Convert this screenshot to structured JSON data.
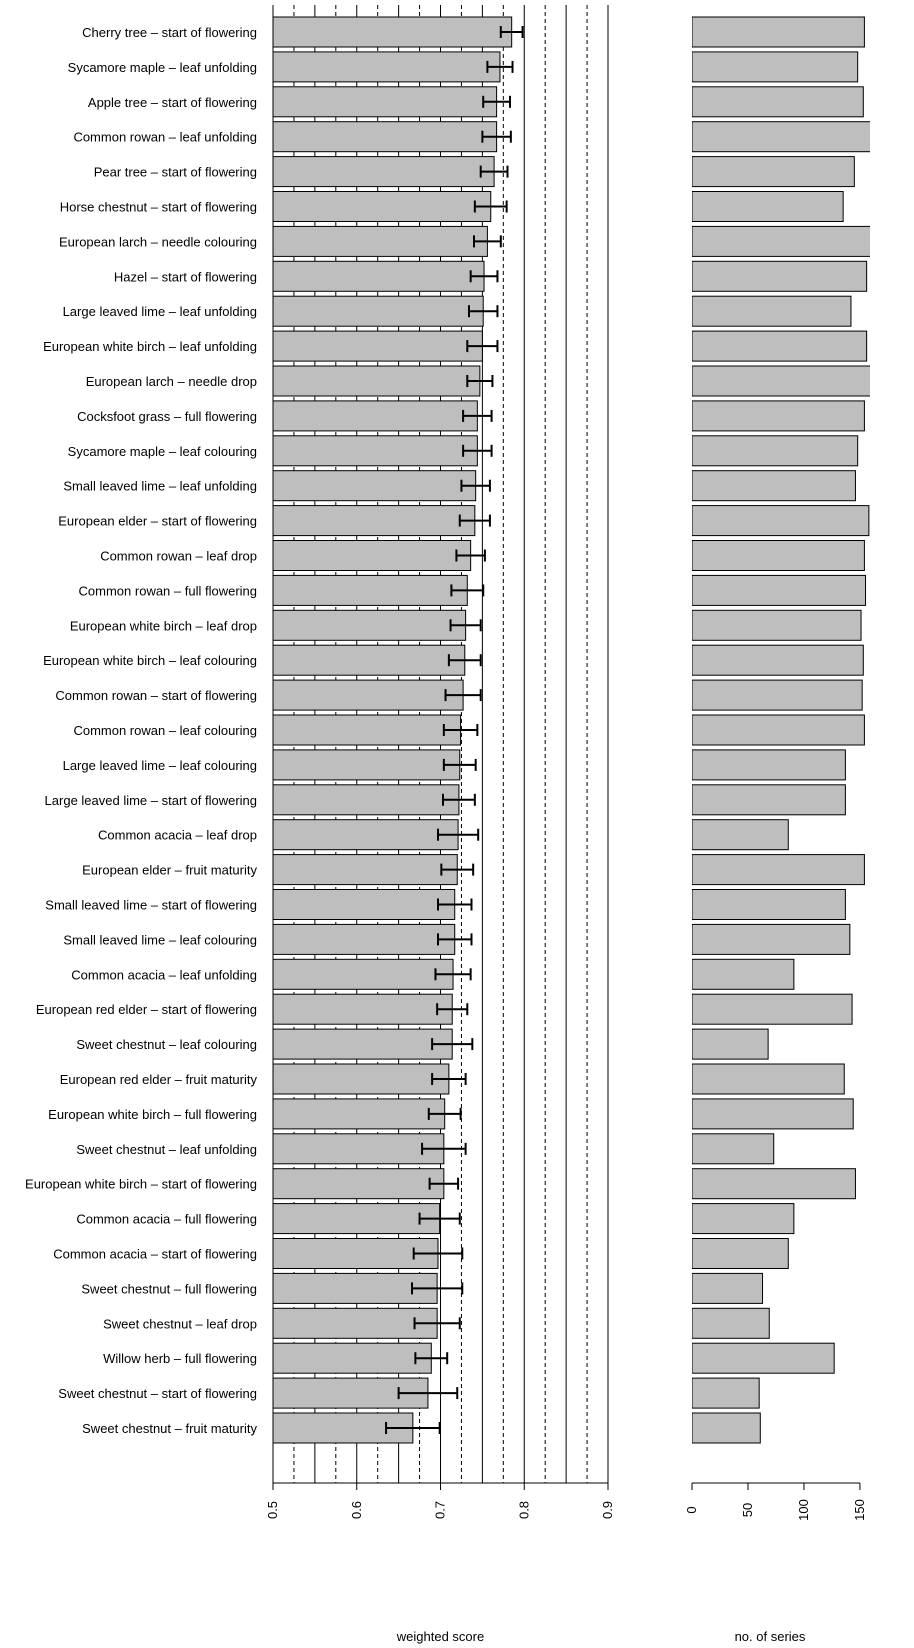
{
  "chart_data": [
    {
      "type": "bar-error",
      "orientation": "horizontal",
      "xlabel": "weighted score",
      "color": "#bebebe",
      "categories": [
        "Cherry tree – start of flowering",
        "Sycamore maple – leaf unfolding",
        "Apple tree – start of flowering",
        "Common rowan – leaf unfolding",
        "Pear tree – start of flowering",
        "Horse chestnut – start of flowering",
        "European larch – needle colouring",
        "Hazel – start of flowering",
        "Large leaved lime – leaf unfolding",
        "European white birch – leaf unfolding",
        "European larch – needle drop",
        "Cocksfoot grass – full flowering",
        "Sycamore maple – leaf colouring",
        "Small leaved lime – leaf unfolding",
        "European elder – start of flowering",
        "Common rowan – leaf drop",
        "Common rowan – full flowering",
        "European white birch – leaf drop",
        "European white birch – leaf colouring",
        "Common rowan – start of flowering",
        "Common rowan – leaf colouring",
        "Large leaved lime – leaf colouring",
        "Large leaved lime – start of flowering",
        "Common acacia – leaf drop",
        "European elder – fruit maturity",
        "Small leaved lime – start of flowering",
        "Small leaved lime – leaf colouring",
        "Common acacia – leaf unfolding",
        "European red elder – start of flowering",
        "Sweet chestnut – leaf colouring",
        "European red elder – fruit maturity",
        "European white birch – full flowering",
        "Sweet chestnut – leaf unfolding",
        "European white birch – start of flowering",
        "Common acacia – full flowering",
        "Common acacia – start of flowering",
        "Sweet chestnut – full flowering",
        "Sweet chestnut – leaf drop",
        "Willow herb – full flowering",
        "Sweet chestnut – start of flowering",
        "Sweet chestnut – fruit maturity"
      ],
      "values": [
        0.785,
        0.771,
        0.767,
        0.767,
        0.764,
        0.76,
        0.756,
        0.752,
        0.751,
        0.75,
        0.747,
        0.744,
        0.744,
        0.742,
        0.741,
        0.736,
        0.732,
        0.73,
        0.729,
        0.727,
        0.724,
        0.723,
        0.722,
        0.721,
        0.72,
        0.717,
        0.717,
        0.715,
        0.714,
        0.714,
        0.71,
        0.705,
        0.704,
        0.704,
        0.699,
        0.697,
        0.696,
        0.696,
        0.689,
        0.685,
        0.667
      ],
      "errors": [
        0.013,
        0.015,
        0.016,
        0.017,
        0.016,
        0.019,
        0.016,
        0.016,
        0.017,
        0.018,
        0.015,
        0.017,
        0.017,
        0.017,
        0.018,
        0.017,
        0.019,
        0.018,
        0.019,
        0.021,
        0.02,
        0.019,
        0.019,
        0.024,
        0.019,
        0.02,
        0.02,
        0.021,
        0.018,
        0.024,
        0.02,
        0.019,
        0.026,
        0.017,
        0.024,
        0.029,
        0.03,
        0.027,
        0.019,
        0.035,
        0.032
      ],
      "xlim": [
        0.5,
        0.9
      ],
      "xticks": [
        0.5,
        0.6,
        0.7,
        0.8,
        0.9
      ],
      "grid_solid": [
        0.5,
        0.55,
        0.6,
        0.65,
        0.7,
        0.75,
        0.8,
        0.85,
        0.9
      ],
      "grid_dashed": [
        0.525,
        0.575,
        0.625,
        0.675,
        0.725,
        0.775,
        0.825,
        0.875
      ]
    },
    {
      "type": "bar",
      "orientation": "horizontal",
      "xlabel": "no. of series",
      "color": "#bebebe",
      "values": [
        154,
        148,
        153,
        162,
        145,
        135,
        165,
        156,
        142,
        156,
        170,
        154,
        148,
        146,
        158,
        154,
        155,
        151,
        153,
        152,
        154,
        137,
        137,
        86,
        154,
        137,
        141,
        91,
        143,
        68,
        136,
        144,
        73,
        146,
        91,
        86,
        63,
        69,
        127,
        60,
        61
      ],
      "xlim": [
        0,
        159
      ],
      "xticks": [
        0,
        50,
        100,
        150
      ]
    }
  ]
}
